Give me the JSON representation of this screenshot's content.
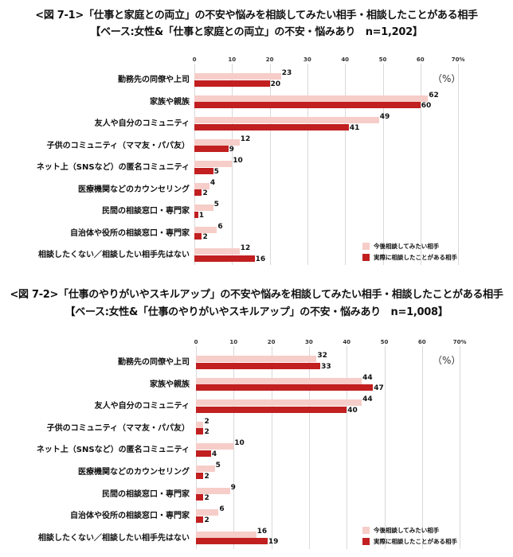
{
  "chart_data": [
    {
      "type": "bar",
      "orientation": "horizontal",
      "title": "<図 7-1>「仕事と家庭との両立」の不安や悩みを相談してみたい相手・相談したことがある相手",
      "subtitle": "【ベース:女性&「仕事と家庭との両立」の不安・悩みあり　n=1,202】",
      "unit_label": "（%）",
      "xlim": [
        0,
        70
      ],
      "ticks": [
        "0",
        "10",
        "20",
        "30",
        "40",
        "50",
        "60",
        "70%"
      ],
      "grid": true,
      "legend_position": "bottom-right",
      "categories": [
        "勤務先の同僚や上司",
        "家族や親族",
        "友人や自分のコミュニティ",
        "子供のコミュニティ（ママ友・パパ友）",
        "ネット上（SNSなど）の匿名コミュニティ",
        "医療機関などのカウンセリング",
        "民間の相談窓口・専門家",
        "自治体や役所の相談窓口・専門家",
        "相談したくない／相談したい相手先はない"
      ],
      "series": [
        {
          "name": "今後相談してみたい相手",
          "color": "#f6cdc8",
          "values": [
            23,
            62,
            49,
            12,
            10,
            4,
            5,
            6,
            12
          ]
        },
        {
          "name": "実際に相談したことがある相手",
          "color": "#c11f20",
          "values": [
            20,
            60,
            41,
            9,
            5,
            2,
            1,
            2,
            16
          ]
        }
      ]
    },
    {
      "type": "bar",
      "orientation": "horizontal",
      "title": "<図 7-2>「仕事のやりがいやスキルアップ」の不安や悩みを相談してみたい相手・相談したことがある相手",
      "subtitle": "【ベース:女性&「仕事のやりがいやスキルアップ」の不安・悩みあり　n=1,008】",
      "unit_label": "（%）",
      "xlim": [
        0,
        70
      ],
      "ticks": [
        "0",
        "10",
        "20",
        "30",
        "40",
        "50",
        "60",
        "70%"
      ],
      "grid": true,
      "legend_position": "bottom-right",
      "categories": [
        "勤務先の同僚や上司",
        "家族や親族",
        "友人や自分のコミュニティ",
        "子供のコミュニティ（ママ友・パパ友）",
        "ネット上（SNSなど）の匿名コミュニティ",
        "医療機関などのカウンセリング",
        "民間の相談窓口・専門家",
        "自治体や役所の相談窓口・専門家",
        "相談したくない／相談したい相手先はない"
      ],
      "series": [
        {
          "name": "今後相談してみたい相手",
          "color": "#f6cdc8",
          "values": [
            32,
            44,
            44,
            2,
            10,
            5,
            9,
            6,
            16
          ]
        },
        {
          "name": "実際に相談したことがある相手",
          "color": "#c11f20",
          "values": [
            33,
            47,
            40,
            2,
            4,
            2,
            2,
            2,
            19
          ]
        }
      ]
    }
  ]
}
